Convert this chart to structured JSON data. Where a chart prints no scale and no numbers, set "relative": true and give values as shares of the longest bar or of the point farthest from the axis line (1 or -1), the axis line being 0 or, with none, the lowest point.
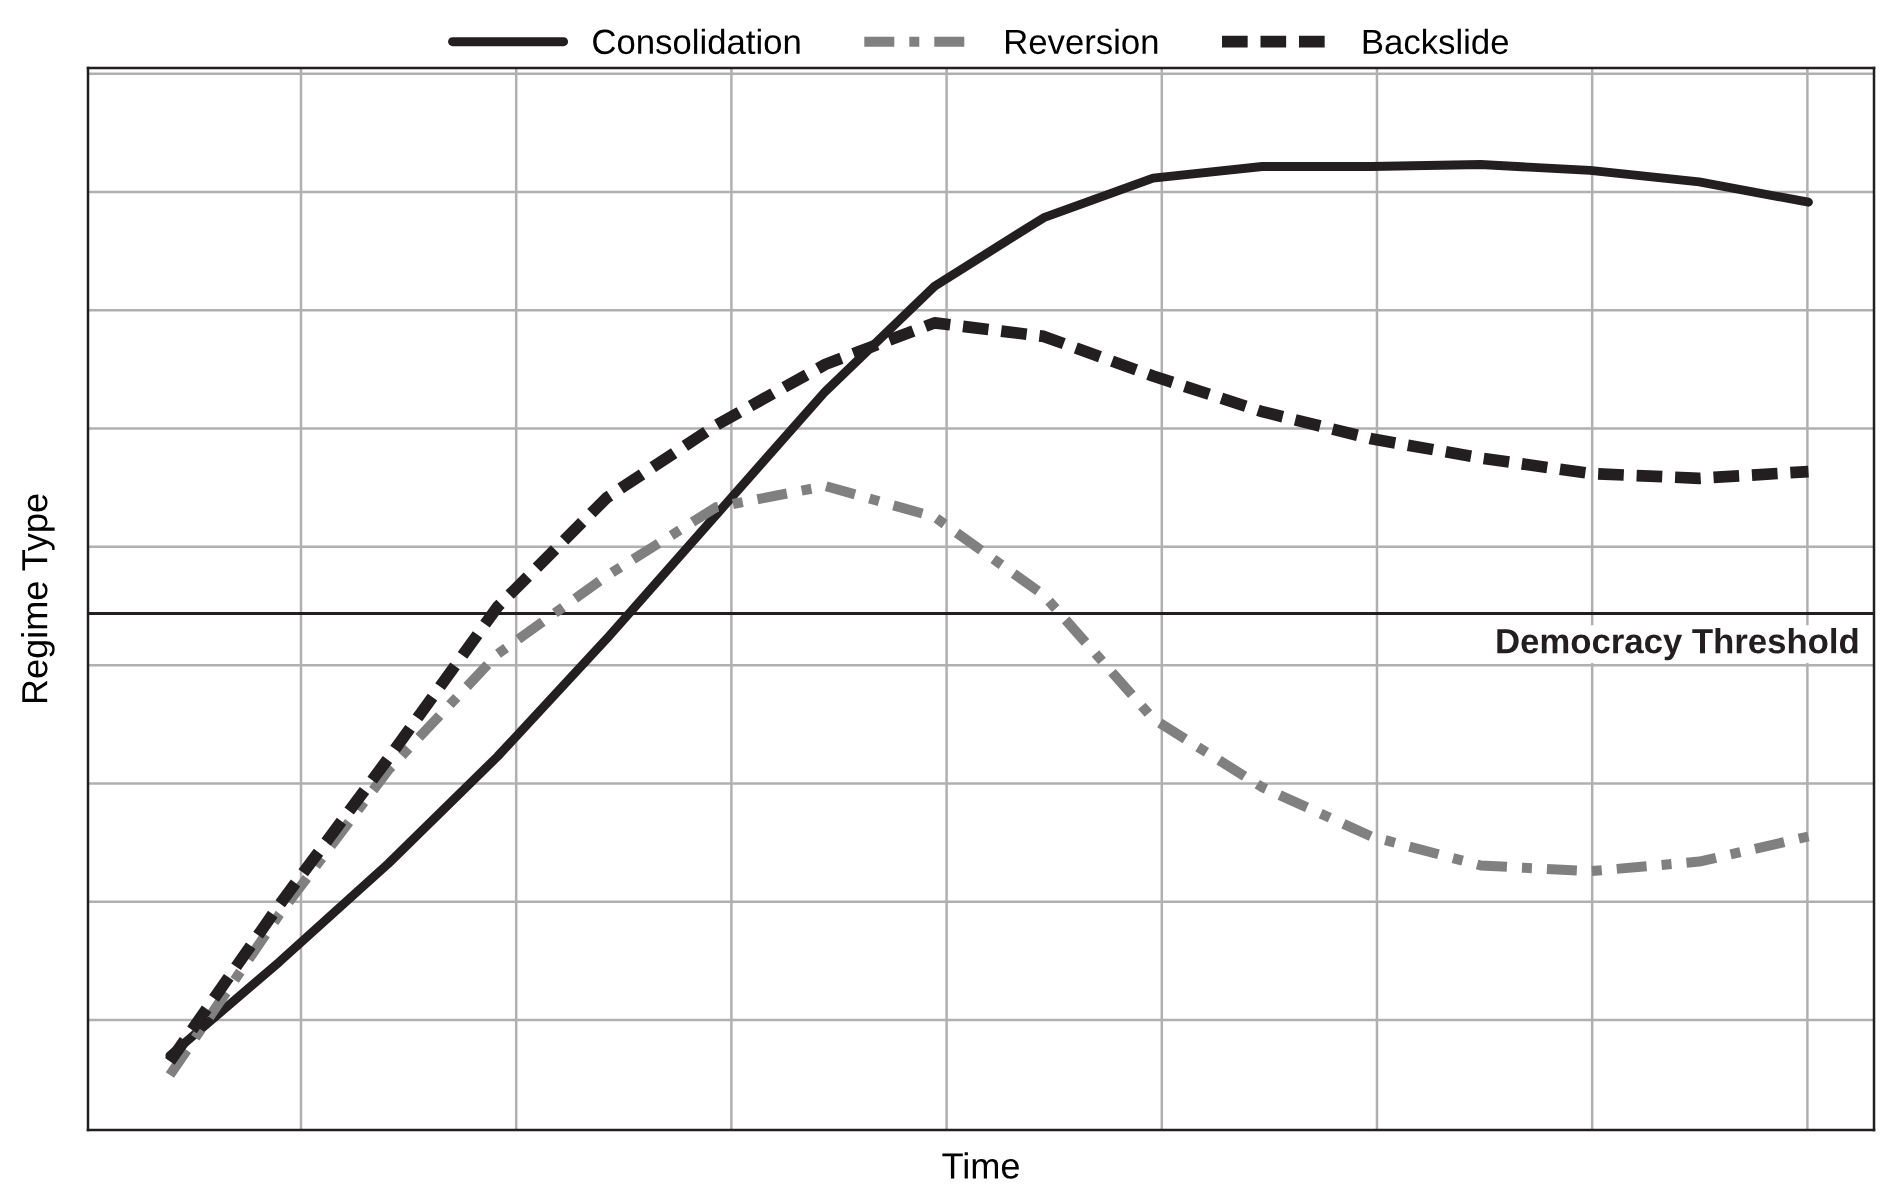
{
  "chart_data": {
    "type": "line",
    "relative": true,
    "xlabel": "Time",
    "ylabel": "Regime Type",
    "categories": [
      null,
      null,
      null,
      null,
      null,
      null,
      null,
      null,
      null,
      null,
      null,
      null,
      null,
      null,
      null,
      null
    ],
    "series": [
      {
        "name": "Consolidation",
        "color": "#231f20",
        "line_style": "solid",
        "values": [
          0.077,
          0.174,
          0.276,
          0.387,
          0.509,
          0.637,
          0.765,
          0.874,
          0.945,
          0.986,
          0.998,
          0.998,
          1.0,
          0.994,
          0.982,
          0.961
        ]
      },
      {
        "name": "Reversion",
        "color": "#808080",
        "line_style": "dashdot",
        "values": [
          0.057,
          0.223,
          0.373,
          0.493,
          0.574,
          0.645,
          0.667,
          0.635,
          0.554,
          0.426,
          0.355,
          0.304,
          0.274,
          0.268,
          0.278,
          0.304
        ]
      },
      {
        "name": "Backslide",
        "color": "#231f20",
        "line_style": "dashed",
        "values": [
          0.071,
          0.233,
          0.385,
          0.542,
          0.655,
          0.73,
          0.793,
          0.836,
          0.822,
          0.781,
          0.744,
          0.716,
          0.696,
          0.68,
          0.675,
          0.682
        ]
      }
    ],
    "ref_lines": [
      {
        "axis": "y",
        "value": 0.535,
        "label": "Democracy Threshold",
        "color": "#231f20"
      }
    ],
    "grid": true,
    "legend": "top",
    "marker": "none",
    "tick_labels": false
  }
}
